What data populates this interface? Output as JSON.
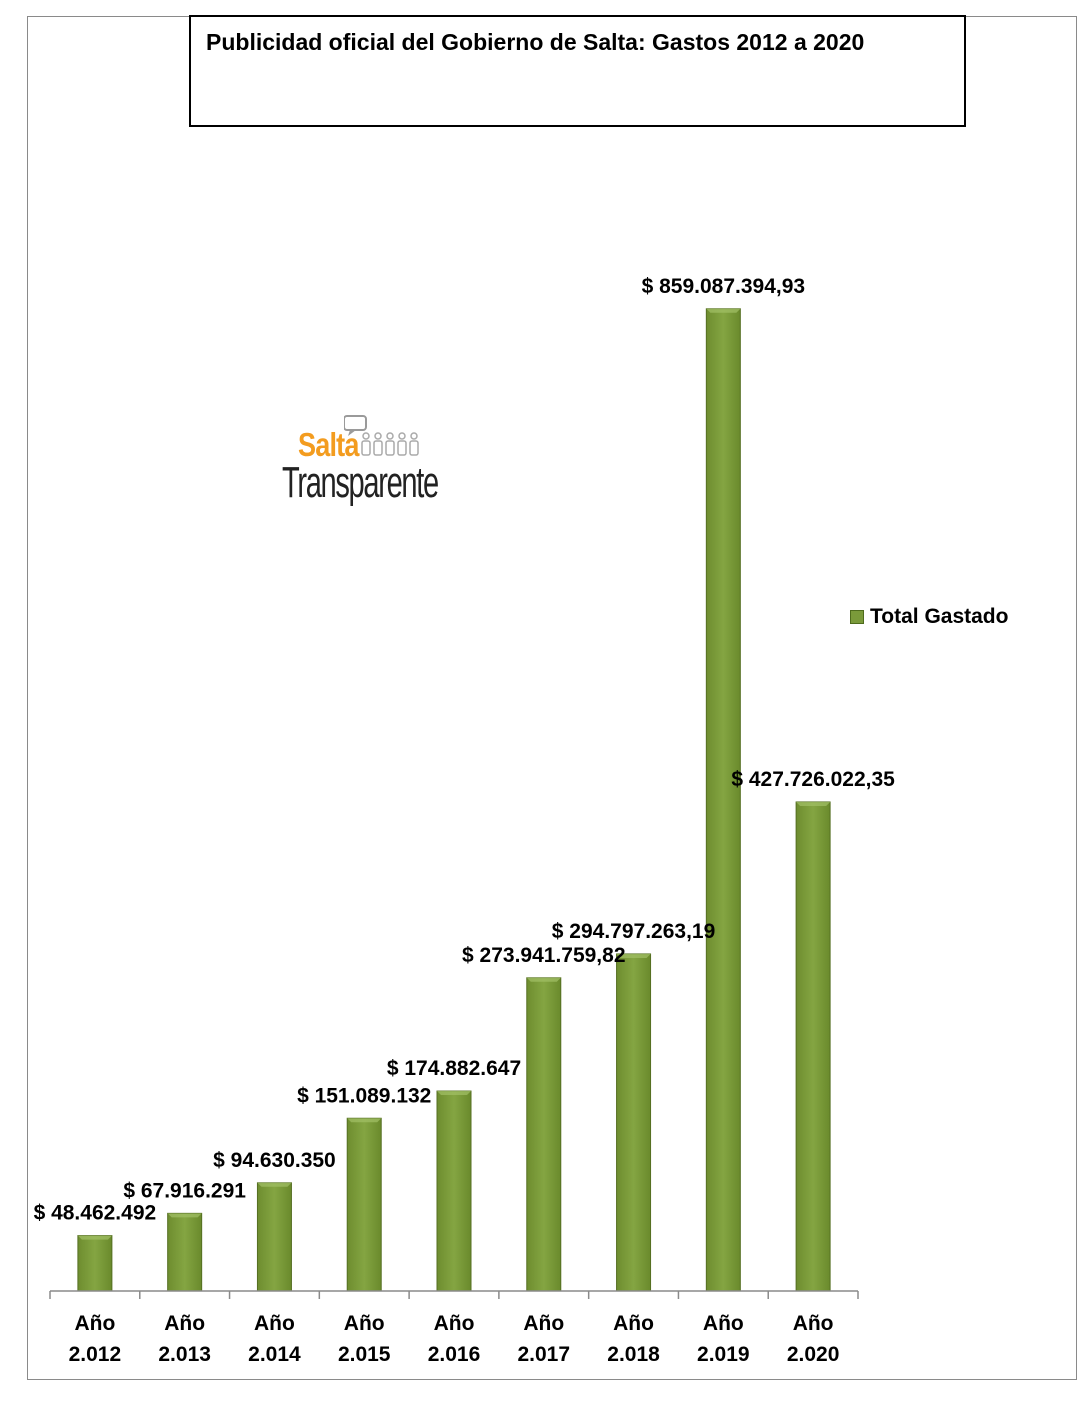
{
  "chart_data": {
    "type": "bar",
    "title": "Publicidad oficial del Gobierno de Salta: Gastos 2012 a 2020",
    "categories": [
      [
        "Año",
        "2.012"
      ],
      [
        "Año",
        "2.013"
      ],
      [
        "Año",
        "2.014"
      ],
      [
        "Año",
        "2.015"
      ],
      [
        "Año",
        "2.016"
      ],
      [
        "Año",
        "2.017"
      ],
      [
        "Año",
        "2.018"
      ],
      [
        "Año",
        "2.019"
      ],
      [
        "Año",
        "2.020"
      ]
    ],
    "series": [
      {
        "name": "Total Gastado",
        "values": [
          48462492,
          67916291,
          94630350,
          151089132,
          174882647,
          273941759.82,
          294797263.19,
          859087394.93,
          427726022.35
        ],
        "labels": [
          "$ 48.462.492",
          "$ 67.916.291",
          "$ 94.630.350",
          "$ 151.089.132",
          "$ 174.882.647",
          "$ 273.941.759,82",
          "$ 294.797.263,19",
          "$ 859.087.394,93",
          "$ 427.726.022,35"
        ]
      }
    ],
    "ylim": [
      0,
      900000000
    ],
    "legend_position": "right",
    "grid": false,
    "bar_color": "#7a9a3a"
  },
  "logo": {
    "line1": "Salta",
    "line2": "Transparente"
  }
}
